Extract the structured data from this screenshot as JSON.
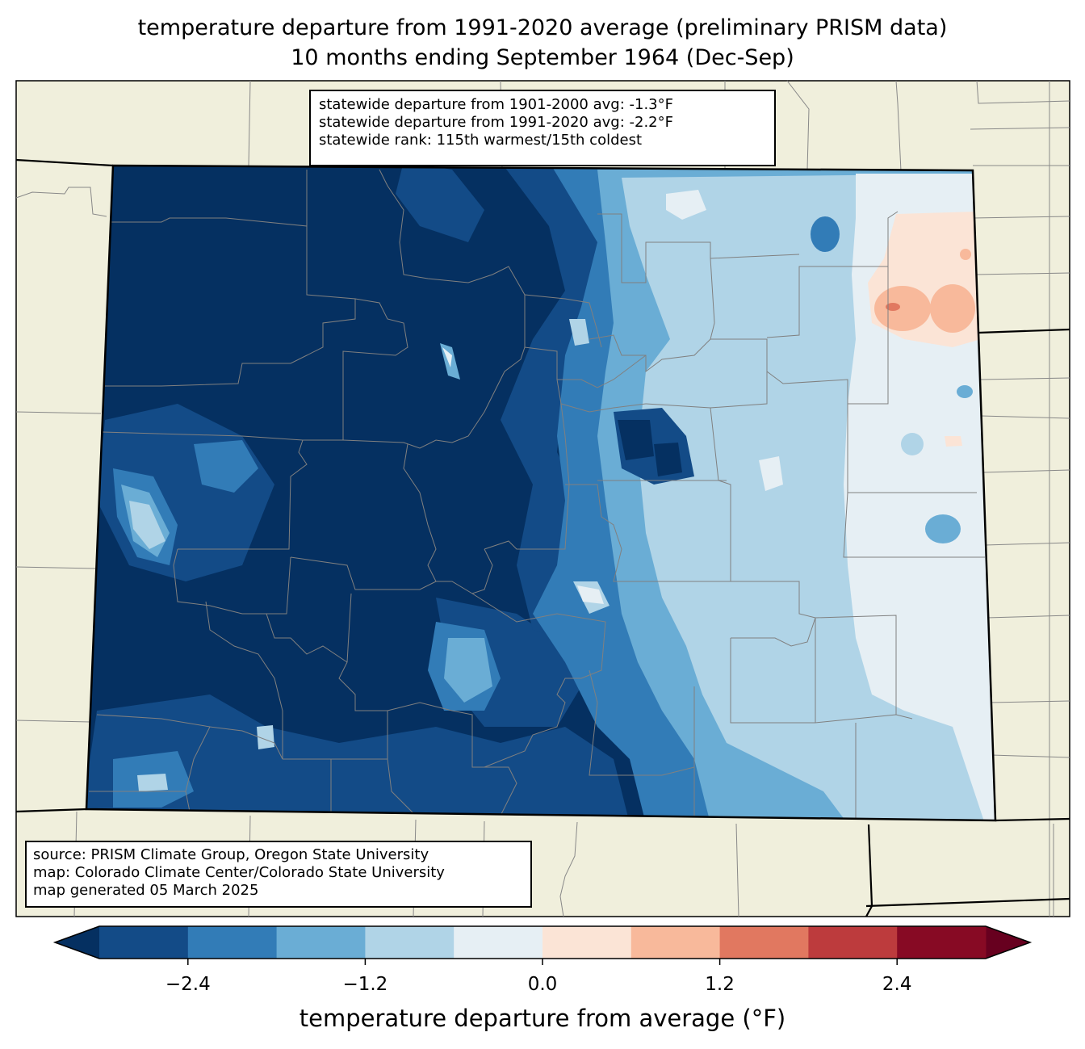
{
  "title_line1": "temperature departure from 1991-2020 average (preliminary PRISM data)",
  "title_line2": "10 months ending September 1964 (Dec-Sep)",
  "stats": {
    "line1": "statewide departure from 1901-2000 avg: -1.3°F",
    "line2": "statewide departure from 1991-2020 avg: -2.2°F",
    "line3": "statewide rank: 115th warmest/15th coldest"
  },
  "source": {
    "line1": "source: PRISM Climate Group, Oregon State University",
    "line2": "map: Colorado Climate Center/Colorado State University",
    "line3": "map generated 05 March 2025"
  },
  "colorbar": {
    "label": "temperature departure from average (°F)",
    "ticks": [
      {
        "value": -2.4,
        "text": "−2.4"
      },
      {
        "value": -1.2,
        "text": "−1.2"
      },
      {
        "value": 0.0,
        "text": "0.0"
      },
      {
        "value": 1.2,
        "text": "1.2"
      },
      {
        "value": 2.4,
        "text": "2.4"
      }
    ],
    "range": [
      -3.0,
      3.0
    ],
    "step": 0.6,
    "colors": [
      "#053061",
      "#134b87",
      "#327cb7",
      "#6aadd5",
      "#b0d4e7",
      "#e6eff4",
      "#fbe4d6",
      "#f8b99b",
      "#e17860",
      "#bd3b3d",
      "#870a24",
      "#67001f"
    ]
  },
  "colors": {
    "land": "#f0efdc",
    "state_border": "#000000",
    "county_border": "#808080"
  }
}
